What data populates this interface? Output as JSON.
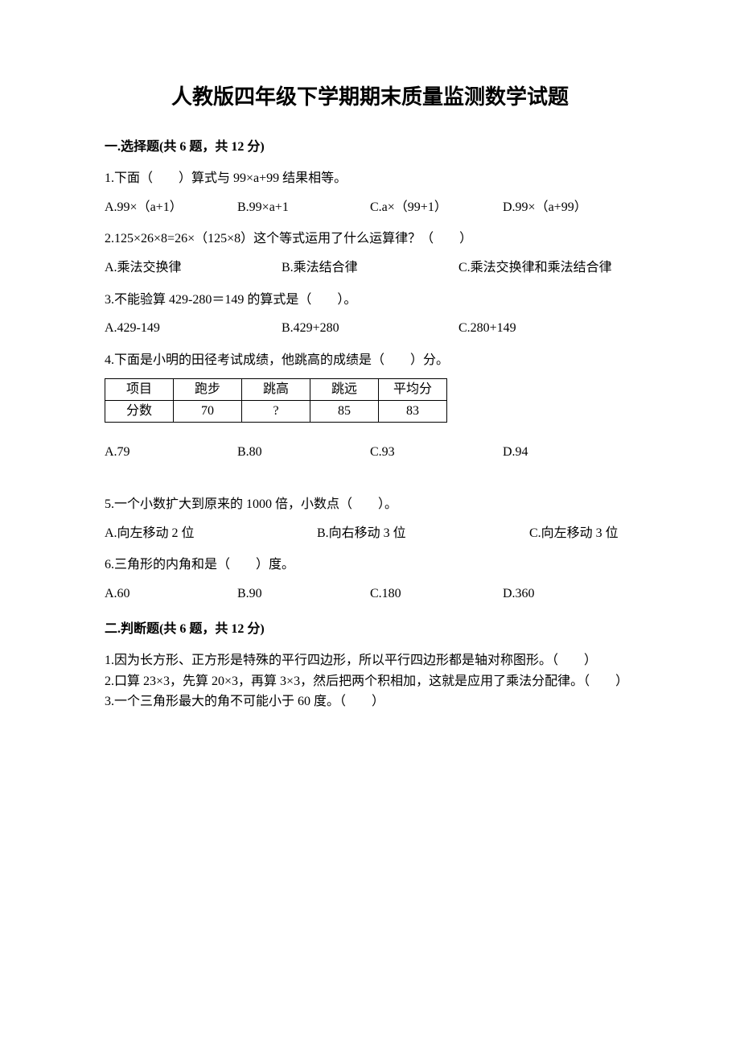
{
  "title": "人教版四年级下学期期末质量监测数学试题",
  "sections": {
    "s1": {
      "header": "一.选择题(共 6 题，共 12 分)",
      "q1": {
        "text": "1.下面（　　）算式与 99×a+99 结果相等。",
        "a": "A.99×（a+1）",
        "b": "B.99×a+1",
        "c": "C.a×（99+1）",
        "d": "D.99×（a+99）"
      },
      "q2": {
        "text": "2.125×26×8=26×（125×8）这个等式运用了什么运算律？（　　）",
        "a": "A.乘法交换律",
        "b": "B.乘法结合律",
        "c": "C.乘法交换律和乘法结合律"
      },
      "q3": {
        "text": "3.不能验算 429-280＝149 的算式是（　　）。",
        "a": "A.429-149",
        "b": "B.429+280",
        "c": "C.280+149"
      },
      "q4": {
        "text": "4.下面是小明的田径考试成绩，他跳高的成绩是（　　）分。",
        "table": {
          "headers": [
            "项目",
            "跑步",
            "跳高",
            "跳远",
            "平均分"
          ],
          "row": [
            "分数",
            "70",
            "?",
            "85",
            "83"
          ]
        },
        "a": "A.79",
        "b": "B.80",
        "c": "C.93",
        "d": "D.94"
      },
      "q5": {
        "text": "5.一个小数扩大到原来的 1000 倍，小数点（　　）。",
        "a": "A.向左移动 2 位",
        "b": "B.向右移动 3 位",
        "c": "C.向左移动 3 位"
      },
      "q6": {
        "text": "6.三角形的内角和是（　　）度。",
        "a": "A.60",
        "b": "B.90",
        "c": "C.180",
        "d": "D.360"
      }
    },
    "s2": {
      "header": "二.判断题(共 6 题，共 12 分)",
      "q1": "1.因为长方形、正方形是特殊的平行四边形，所以平行四边形都是轴对称图形。（　　）",
      "q2": "2.口算 23×3，先算 20×3，再算 3×3，然后把两个积相加，这就是应用了乘法分配律。（　　）",
      "q3": "3.一个三角形最大的角不可能小于 60 度。（　　）"
    }
  }
}
